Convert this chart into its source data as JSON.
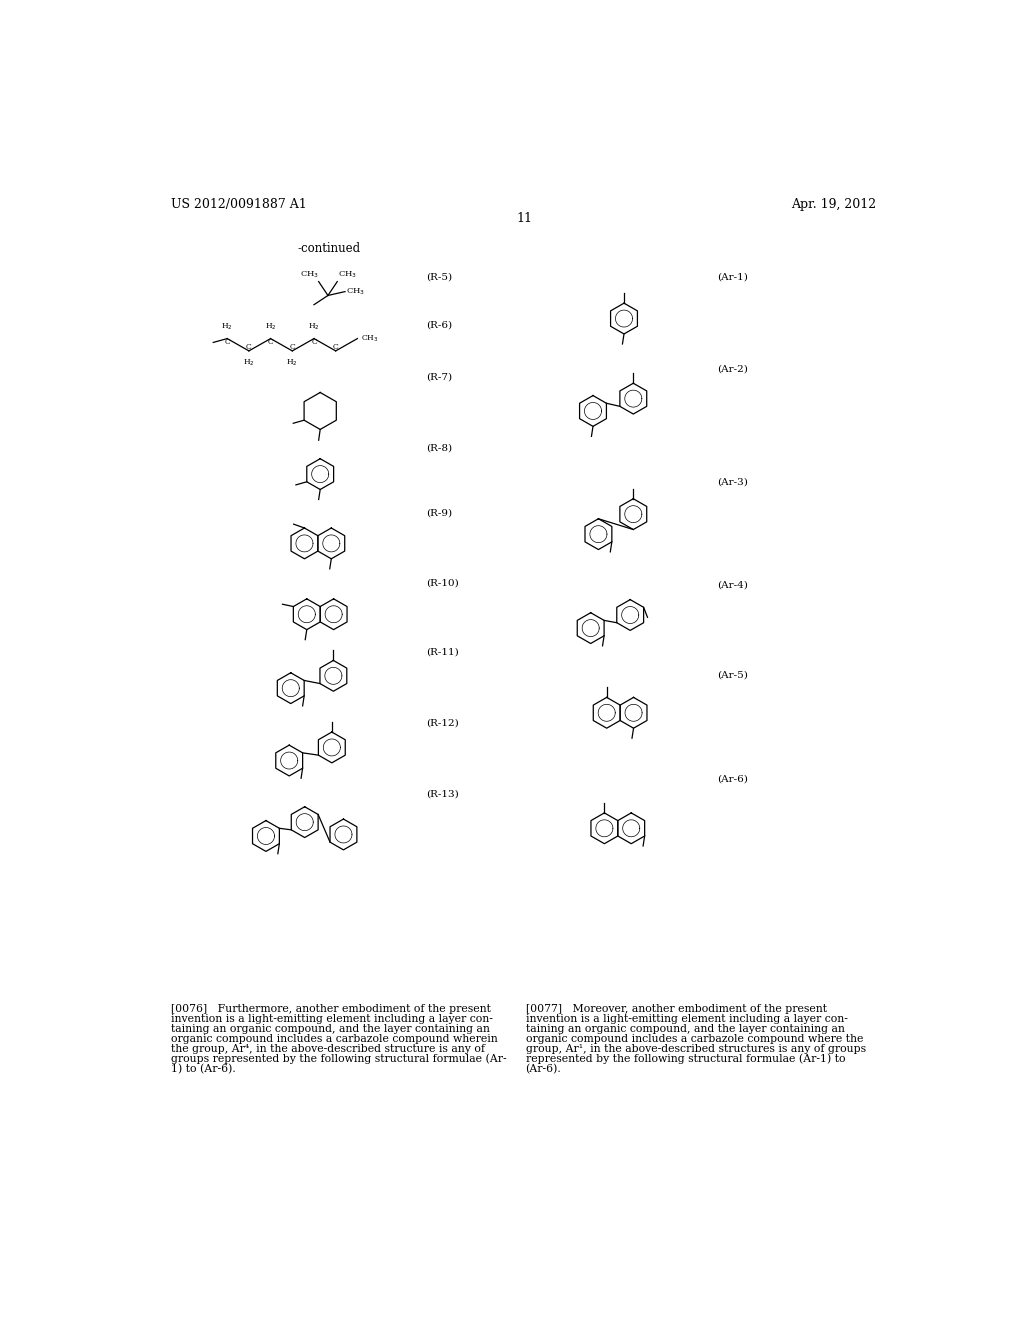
{
  "header_left": "US 2012/0091887 A1",
  "header_right": "Apr. 19, 2012",
  "page_number": "11",
  "continued_label": "-continued",
  "background_color": "#ffffff",
  "text_color": "#000000",
  "para0076": "[0076]   Furthermore, another embodiment of the present\ninvention is a light-emitting element including a layer con-\ntaining an organic compound, and the layer containing an\norganic compound includes a carbazole compound wherein\nthe group, Ar⁴, in the above-described structure is any of\ngroups represented by the following structural formulae (Ar-\n1) to (Ar-6).",
  "para0077": "[0077]   Moreover, another embodiment of the present\ninvention is a light-emitting element including a layer con-\ntaining an organic compound, and the layer containing an\norganic compound includes a carbazole compound where the\ngroup, Ar¹, in the above-described structures is any of groups\nrepresented by the following structural formulae (Ar-1) to\n(Ar-6)."
}
